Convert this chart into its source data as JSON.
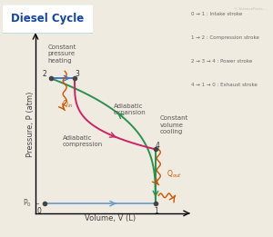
{
  "title": "Diesel Cycle",
  "bg_color": "#f0ebe0",
  "xlabel": "Volume, V (L)",
  "ylabel": "Pressure, P (atm)",
  "legend_lines": [
    "0 → 1 : Intake stroke",
    "1 → 2 : Compression stroke",
    "2 → 3 → 4 : Power stroke",
    "4 → 1 → 0 : Exhaust stroke"
  ],
  "colors": {
    "green_curve": "#2a9050",
    "pink_curve": "#cc2266",
    "blue_line": "#4477cc",
    "orange_wave": "#cc5500",
    "intake_line": "#6699cc",
    "title_border": "#44aaaa",
    "title_text": "#1144aa",
    "annotation": "#555555",
    "point": "#444444"
  },
  "points": {
    "0": [
      0.06,
      0.055
    ],
    "1": [
      0.8,
      0.055
    ],
    "2": [
      0.1,
      0.76
    ],
    "3": [
      0.26,
      0.76
    ],
    "4": [
      0.8,
      0.36
    ]
  }
}
